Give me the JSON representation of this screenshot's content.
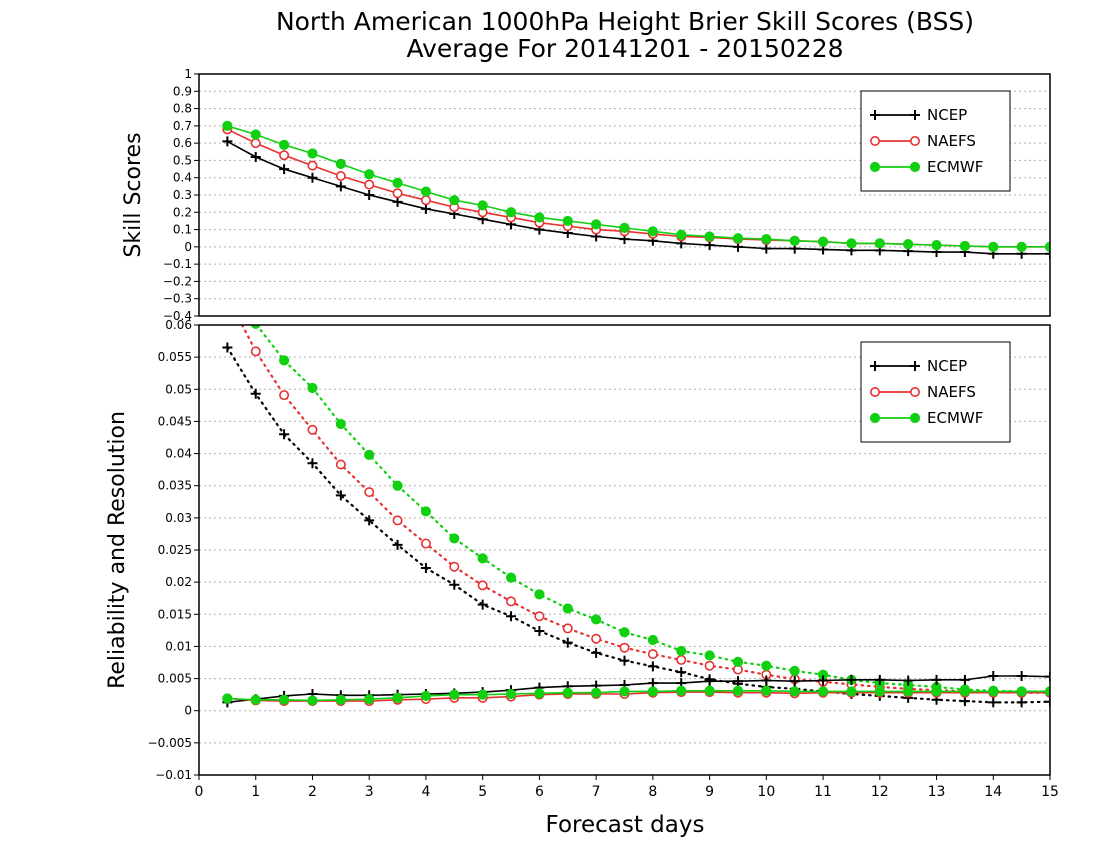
{
  "title_line1": "North American 1000hPa Height Brier Skill Scores (BSS)",
  "title_line2": "Average For 20141201 - 20150228",
  "colors": {
    "NCEP": "#000000",
    "NAEFS": "#e83030",
    "ECMWF": "#11d011"
  },
  "chart_data": [
    {
      "type": "line",
      "ylabel": "Skill Scores",
      "ylim": [
        -0.4,
        1
      ],
      "yticks": [
        -0.4,
        -0.3,
        -0.2,
        -0.1,
        0,
        0.1,
        0.2,
        0.3,
        0.4,
        0.5,
        0.6,
        0.7,
        0.8,
        0.9,
        1
      ],
      "xlim": [
        0,
        15
      ],
      "grid": true,
      "legend": "top-right",
      "x": [
        0.5,
        1,
        1.5,
        2,
        2.5,
        3,
        3.5,
        4,
        4.5,
        5,
        5.5,
        6,
        6.5,
        7,
        7.5,
        8,
        8.5,
        9,
        9.5,
        10,
        10.5,
        11,
        11.5,
        12,
        12.5,
        13,
        13.5,
        14,
        14.5,
        15
      ],
      "series": [
        {
          "name": "NCEP",
          "style": "solid",
          "marker": "plus",
          "values": [
            0.61,
            0.52,
            0.45,
            0.4,
            0.35,
            0.3,
            0.26,
            0.22,
            0.19,
            0.16,
            0.13,
            0.1,
            0.08,
            0.06,
            0.045,
            0.035,
            0.02,
            0.01,
            0.0,
            -0.01,
            -0.01,
            -0.015,
            -0.02,
            -0.02,
            -0.025,
            -0.03,
            -0.03,
            -0.04,
            -0.04,
            -0.04
          ]
        },
        {
          "name": "NAEFS",
          "style": "solid",
          "marker": "open-circle",
          "values": [
            0.68,
            0.6,
            0.53,
            0.47,
            0.41,
            0.36,
            0.31,
            0.27,
            0.23,
            0.2,
            0.17,
            0.14,
            0.12,
            0.1,
            0.09,
            0.075,
            0.06,
            0.055,
            0.045,
            0.04,
            0.035,
            0.03,
            0.02,
            0.02,
            0.015,
            0.01,
            0.005,
            0.0,
            0.0,
            0.0
          ]
        },
        {
          "name": "ECMWF",
          "style": "solid",
          "marker": "filled-circle",
          "values": [
            0.7,
            0.65,
            0.59,
            0.54,
            0.48,
            0.42,
            0.37,
            0.32,
            0.27,
            0.24,
            0.2,
            0.17,
            0.15,
            0.13,
            0.11,
            0.09,
            0.07,
            0.06,
            0.05,
            0.045,
            0.035,
            0.03,
            0.02,
            0.02,
            0.015,
            0.01,
            0.005,
            0.0,
            0.0,
            0.0
          ]
        }
      ]
    },
    {
      "type": "line",
      "ylabel": "Reliability and Resolution",
      "xlabel": "Forecast days",
      "ylim": [
        -0.01,
        0.06
      ],
      "yticks": [
        -0.01,
        -0.005,
        0,
        0.005,
        0.01,
        0.015,
        0.02,
        0.025,
        0.03,
        0.035,
        0.04,
        0.045,
        0.05,
        0.055,
        0.06
      ],
      "ytick_labels": [
        "−0.01",
        "−0.005",
        "0",
        "0.005",
        "0.01",
        "0.015",
        "0.02",
        "0.025",
        "0.03",
        "0.035",
        "0.04",
        "0.045",
        "0.05",
        "0.055",
        "0.06"
      ],
      "xlim": [
        0,
        15
      ],
      "xticks": [
        0,
        1,
        2,
        3,
        4,
        5,
        6,
        7,
        8,
        9,
        10,
        11,
        12,
        13,
        14,
        15
      ],
      "grid": true,
      "legend": "top-right",
      "x": [
        0.5,
        1,
        1.5,
        2,
        2.5,
        3,
        3.5,
        4,
        4.5,
        5,
        5.5,
        6,
        6.5,
        7,
        7.5,
        8,
        8.5,
        9,
        9.5,
        10,
        10.5,
        11,
        11.5,
        12,
        12.5,
        13,
        13.5,
        14,
        14.5,
        15
      ],
      "series": [
        {
          "name": "NCEP",
          "style": "dotted",
          "marker": "plus",
          "values": [
            0.0565,
            0.0493,
            0.043,
            0.0385,
            0.0335,
            0.0296,
            0.0258,
            0.0222,
            0.0196,
            0.0165,
            0.0147,
            0.0124,
            0.0106,
            0.009,
            0.0078,
            0.0069,
            0.006,
            0.0049,
            0.0042,
            0.0037,
            0.0034,
            0.003,
            0.0026,
            0.0023,
            0.002,
            0.0017,
            0.0015,
            0.0013,
            0.0013,
            0.0014
          ]
        },
        {
          "name": "NAEFS",
          "style": "dotted",
          "marker": "open-circle",
          "values": [
            0.0645,
            0.0559,
            0.0491,
            0.0437,
            0.0383,
            0.034,
            0.0296,
            0.026,
            0.0224,
            0.0195,
            0.017,
            0.0147,
            0.0128,
            0.0112,
            0.0098,
            0.0088,
            0.0079,
            0.007,
            0.0064,
            0.0056,
            0.0049,
            0.0045,
            0.0041,
            0.0037,
            0.0034,
            0.0032,
            0.003,
            0.0029,
            0.0028,
            0.0028
          ]
        },
        {
          "name": "ECMWF",
          "style": "dotted",
          "marker": "filled-circle",
          "values": [
            0.069,
            0.0602,
            0.0545,
            0.0502,
            0.0446,
            0.0398,
            0.035,
            0.031,
            0.0268,
            0.0237,
            0.0207,
            0.0181,
            0.0159,
            0.0142,
            0.0122,
            0.011,
            0.0093,
            0.0086,
            0.0076,
            0.007,
            0.0062,
            0.0056,
            0.0048,
            0.0043,
            0.004,
            0.0037,
            0.0033,
            0.0031,
            0.003,
            0.003
          ]
        },
        {
          "name": "NCEP",
          "style": "solid",
          "marker": "plus",
          "values": [
            0.0013,
            0.0018,
            0.0023,
            0.0026,
            0.0024,
            0.0024,
            0.0025,
            0.0026,
            0.0027,
            0.0029,
            0.0032,
            0.0036,
            0.0038,
            0.0039,
            0.004,
            0.0043,
            0.0043,
            0.0046,
            0.0046,
            0.0047,
            0.0046,
            0.0047,
            0.0048,
            0.0048,
            0.0047,
            0.0048,
            0.0048,
            0.0054,
            0.0054,
            0.0053
          ]
        },
        {
          "name": "NAEFS",
          "style": "solid",
          "marker": "open-circle",
          "values": [
            0.0019,
            0.0016,
            0.0015,
            0.0015,
            0.0015,
            0.0015,
            0.0017,
            0.0018,
            0.002,
            0.002,
            0.0022,
            0.0025,
            0.0026,
            0.0026,
            0.0026,
            0.0028,
            0.0029,
            0.0029,
            0.0028,
            0.0028,
            0.0027,
            0.0028,
            0.0028,
            0.0028,
            0.0028,
            0.0028,
            0.0028,
            0.0028,
            0.0028,
            0.0028
          ]
        },
        {
          "name": "ECMWF",
          "style": "solid",
          "marker": "filled-circle",
          "values": [
            0.0019,
            0.0017,
            0.0017,
            0.0016,
            0.0017,
            0.0018,
            0.002,
            0.0023,
            0.0025,
            0.0025,
            0.0026,
            0.0027,
            0.0028,
            0.0028,
            0.003,
            0.003,
            0.0031,
            0.0031,
            0.0031,
            0.0031,
            0.003,
            0.003,
            0.003,
            0.003,
            0.003,
            0.003,
            0.003,
            0.003,
            0.003,
            0.003
          ]
        }
      ]
    }
  ]
}
